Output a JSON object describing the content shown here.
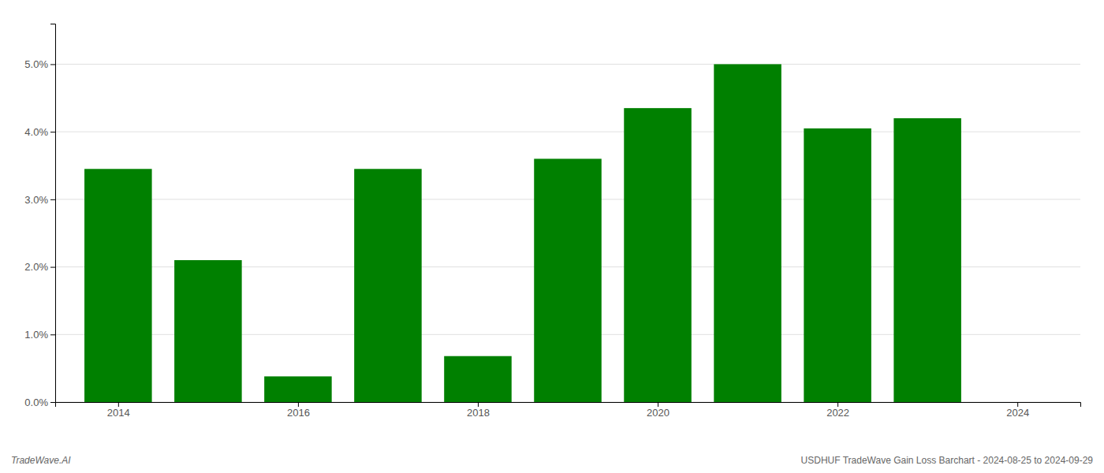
{
  "chart_data": {
    "type": "bar",
    "x": [
      2014,
      2015,
      2016,
      2017,
      2018,
      2019,
      2020,
      2021,
      2022,
      2023
    ],
    "values": [
      0.0345,
      0.021,
      0.0038,
      0.0345,
      0.0068,
      0.036,
      0.0435,
      0.05,
      0.0405,
      0.042
    ],
    "color": "#008000",
    "xlim": [
      2013.3,
      2024.7
    ],
    "xticks": [
      2014,
      2016,
      2018,
      2020,
      2022,
      2024
    ],
    "ylim": [
      0,
      0.056
    ],
    "yticks": [
      {
        "value": 0.0,
        "label": "0.0%"
      },
      {
        "value": 0.01,
        "label": "1.0%"
      },
      {
        "value": 0.02,
        "label": "2.0%"
      },
      {
        "value": 0.03,
        "label": "3.0%"
      },
      {
        "value": 0.04,
        "label": "4.0%"
      },
      {
        "value": 0.05,
        "label": "5.0%"
      }
    ],
    "grid": true,
    "annotations": [
      "TradeWave.AI",
      "USDHUF TradeWave Gain Loss Barchart - 2024-08-25 to 2024-09-29"
    ]
  }
}
